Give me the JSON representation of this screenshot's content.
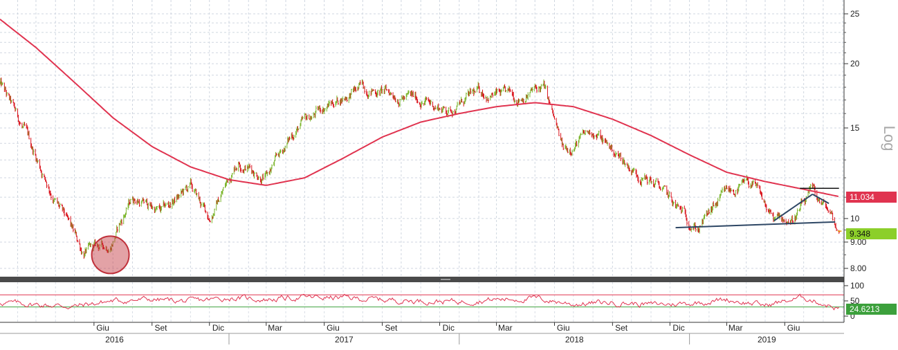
{
  "chart_data": {
    "type": "line",
    "scale": "log",
    "scale_label": "Log",
    "grid": true,
    "x_ticks": [
      "Giu",
      "Set",
      "Dic",
      "Mar",
      "Giu",
      "Set",
      "Dic",
      "Mar",
      "Giu",
      "Set",
      "Dic",
      "Mar",
      "Giu"
    ],
    "x_years": [
      "2016",
      "2017",
      "2018",
      "2019"
    ],
    "y_ticks": [
      "25",
      "20",
      "15",
      "10",
      "9.00",
      "8.00"
    ],
    "ylim": [
      7.5,
      27
    ],
    "price_series": {
      "name": "Price",
      "colors": {
        "up": "#7ab52a",
        "down": "#d9121b"
      },
      "last_value": "9.348",
      "dates": [
        "2016-01-04",
        "2016-02-15",
        "2016-04-01",
        "2016-05-15",
        "2016-06-27",
        "2016-08-01",
        "2016-09-15",
        "2016-11-01",
        "2016-12-01",
        "2017-01-15",
        "2017-03-01",
        "2017-04-15",
        "2017-06-01",
        "2017-08-01",
        "2017-09-15",
        "2017-11-01",
        "2017-12-15",
        "2018-02-01",
        "2018-04-01",
        "2018-05-15",
        "2018-06-15",
        "2018-08-01",
        "2018-10-01",
        "2018-11-15",
        "2018-12-10",
        "2019-01-15",
        "2019-03-01",
        "2019-04-10",
        "2019-05-15",
        "2019-06-15",
        "2019-07-15",
        "2019-08-10",
        "2019-08-26"
      ],
      "values": [
        18.3,
        14.5,
        10.8,
        8.6,
        8.9,
        11.0,
        10.3,
        11.5,
        10.0,
        13.0,
        12.0,
        14.8,
        16.5,
        18.0,
        17.5,
        17.0,
        16.2,
        17.6,
        17.2,
        18.0,
        13.5,
        14.8,
        12.5,
        11.5,
        10.5,
        9.6,
        11.2,
        11.7,
        9.9,
        10.0,
        11.2,
        10.3,
        9.348
      ]
    },
    "moving_average": {
      "name": "MA",
      "color": "#e0334f",
      "last_value": "11.034",
      "dates": [
        "2016-01-04",
        "2016-03-01",
        "2016-05-01",
        "2016-07-01",
        "2016-09-01",
        "2016-11-01",
        "2017-01-01",
        "2017-03-01",
        "2017-05-01",
        "2017-07-01",
        "2017-09-01",
        "2017-11-01",
        "2018-01-01",
        "2018-03-01",
        "2018-05-01",
        "2018-07-01",
        "2018-09-01",
        "2018-11-01",
        "2019-01-01",
        "2019-03-01",
        "2019-05-01",
        "2019-07-01",
        "2019-08-26"
      ],
      "values": [
        24.4,
        21.5,
        18.4,
        15.7,
        13.8,
        12.6,
        11.9,
        11.6,
        12.0,
        13.1,
        14.4,
        15.4,
        16.0,
        16.5,
        16.8,
        16.5,
        15.6,
        14.5,
        13.3,
        12.3,
        11.8,
        11.4,
        11.034
      ]
    },
    "annotations": {
      "trendline_low": {
        "color": "#2d4664",
        "points": [
          [
            "2018-12-10",
            9.6
          ],
          [
            "2019-08-20",
            9.85
          ]
        ]
      },
      "triangle_left": {
        "color": "#2d4664",
        "points": [
          [
            "2019-05-15",
            9.9
          ],
          [
            "2019-07-15",
            11.15
          ]
        ]
      },
      "triangle_right": {
        "color": "#2d4664",
        "points": [
          [
            "2019-07-15",
            11.15
          ],
          [
            "2019-08-10",
            10.7
          ]
        ]
      },
      "resistance": {
        "color": "#111111",
        "points": [
          [
            "2019-06-25",
            11.45
          ],
          [
            "2019-08-26",
            11.45
          ]
        ]
      },
      "support": {
        "color": "#e8a000",
        "points": [
          [
            "2019-08-24",
            9.45
          ],
          [
            "2019-08-30",
            9.45
          ]
        ]
      },
      "circle_marker": {
        "color": "#c0303a",
        "date": "2016-06-27",
        "value": 8.5
      }
    },
    "rsi": {
      "name": "RSI",
      "color": "#e0334f",
      "last_value": "24.6213",
      "y_ticks": [
        "100",
        "50",
        "0"
      ],
      "ylim": [
        0,
        100
      ],
      "levels": [
        70,
        30
      ],
      "level_colors": {
        "upper": "#e0334f",
        "lower": "#3ca03c"
      },
      "dates": [
        "2016-01-04",
        "2016-03-01",
        "2016-05-01",
        "2016-07-01",
        "2016-09-01",
        "2016-11-01",
        "2017-01-01",
        "2017-03-01",
        "2017-05-01",
        "2017-07-01",
        "2017-09-01",
        "2017-11-01",
        "2018-01-01",
        "2018-03-01",
        "2018-05-01",
        "2018-07-01",
        "2018-09-01",
        "2018-11-01",
        "2019-01-01",
        "2019-03-01",
        "2019-05-01",
        "2019-07-01",
        "2019-08-26"
      ],
      "values": [
        45,
        38,
        32,
        50,
        55,
        48,
        60,
        55,
        62,
        60,
        54,
        50,
        48,
        55,
        58,
        40,
        45,
        38,
        42,
        55,
        35,
        62,
        24.6213
      ]
    }
  }
}
